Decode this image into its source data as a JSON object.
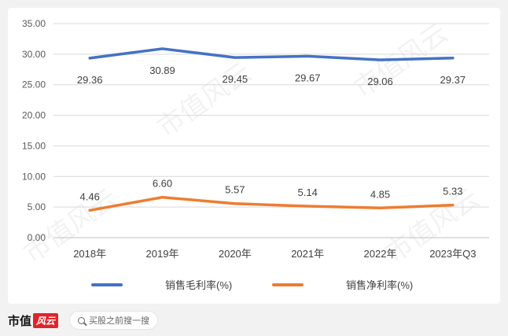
{
  "chart_data": {
    "type": "line",
    "categories": [
      "2018年",
      "2019年",
      "2020年",
      "2021年",
      "2022年",
      "2023年Q3"
    ],
    "series": [
      {
        "name": "销售毛利率(%)",
        "values": [
          29.36,
          30.89,
          29.45,
          29.67,
          29.06,
          29.37
        ],
        "color": "#4472c4"
      },
      {
        "name": "销售净利率(%)",
        "values": [
          4.46,
          6.6,
          5.57,
          5.14,
          4.85,
          5.33
        ],
        "color": "#ed7d31"
      }
    ],
    "ylim": [
      0,
      35
    ],
    "yticks": [
      "0.00",
      "5.00",
      "10.00",
      "15.00",
      "20.00",
      "25.00",
      "30.00",
      "35.00"
    ],
    "data_labels": [
      [
        "29.36",
        "30.89",
        "29.45",
        "29.67",
        "29.06",
        "29.37"
      ],
      [
        "4.46",
        "6.60",
        "5.57",
        "5.14",
        "4.85",
        "5.33"
      ]
    ],
    "grid": true,
    "legend": "bottom"
  },
  "footer": {
    "brand_text": "市值",
    "brand_mark": "风云",
    "search_placeholder": "买股之前搜一搜",
    "search_icon": "search-icon"
  },
  "watermark": "市值风云"
}
